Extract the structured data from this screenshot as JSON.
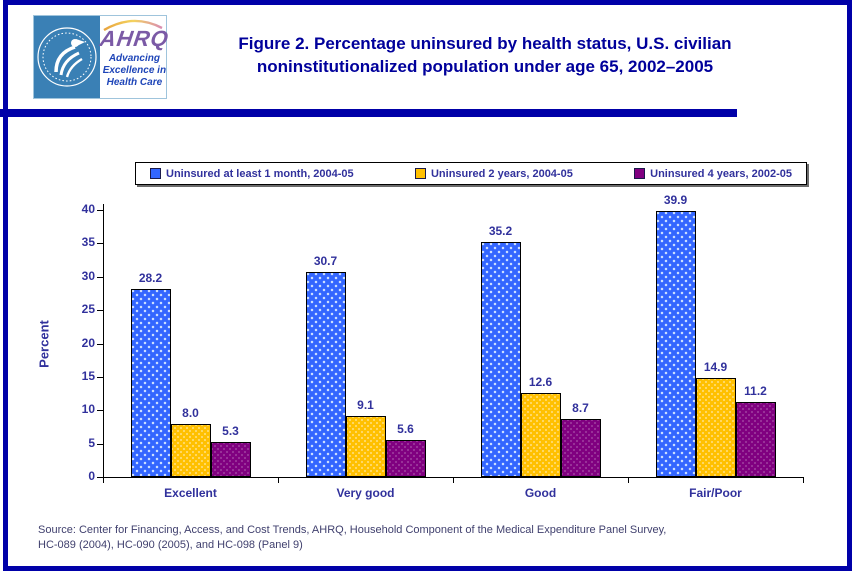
{
  "header": {
    "logo": {
      "ahrq_text": "AHRQ",
      "tagline_lines": [
        "Advancing",
        "Excellence in",
        "Health Care"
      ]
    },
    "title_line1": "Figure 2. Percentage uninsured by health status, U.S. civilian",
    "title_line2": "noninstitutionalized population under age 65, 2002–2005"
  },
  "chart_data": {
    "type": "bar",
    "title": "Figure 2. Percentage uninsured by health status, U.S. civilian noninstitutionalized population under age 65, 2002–2005",
    "categories": [
      "Excellent",
      "Very good",
      "Good",
      "Fair/Poor"
    ],
    "series": [
      {
        "name": "Uninsured at least 1 month, 2004-05",
        "color": "#3366FF",
        "values": [
          28.2,
          30.7,
          35.2,
          39.9
        ]
      },
      {
        "name": "Uninsured 2 years, 2004-05",
        "color": "#FFC000",
        "values": [
          8.0,
          9.1,
          12.6,
          14.9
        ]
      },
      {
        "name": "Uninsured 4 years, 2002-05",
        "color": "#800080",
        "values": [
          5.3,
          5.6,
          8.7,
          11.2
        ]
      }
    ],
    "xlabel": "",
    "ylabel": "Percent",
    "ylim": [
      0,
      40
    ],
    "ytick_interval": 5,
    "grid": false,
    "legend_position": "top",
    "value_labels_decimals": 1
  },
  "source": {
    "line1": "Source: Center for Financing, Access, and Cost Trends, AHRQ, Household Component of the Medical Expenditure Panel Survey,",
    "line2": "HC-089 (2004), HC-090 (2005), and HC-098 (Panel 9)"
  },
  "colors": {
    "title_text": "#00009B",
    "frame": "#0000A8",
    "chart_text": "#31319C",
    "source_text": "#40406E",
    "seal_background": "#3A80B5",
    "ahrq_purple": "#7B5AA6",
    "tagline_blue": "#1E45B8",
    "axis": "#000000"
  }
}
